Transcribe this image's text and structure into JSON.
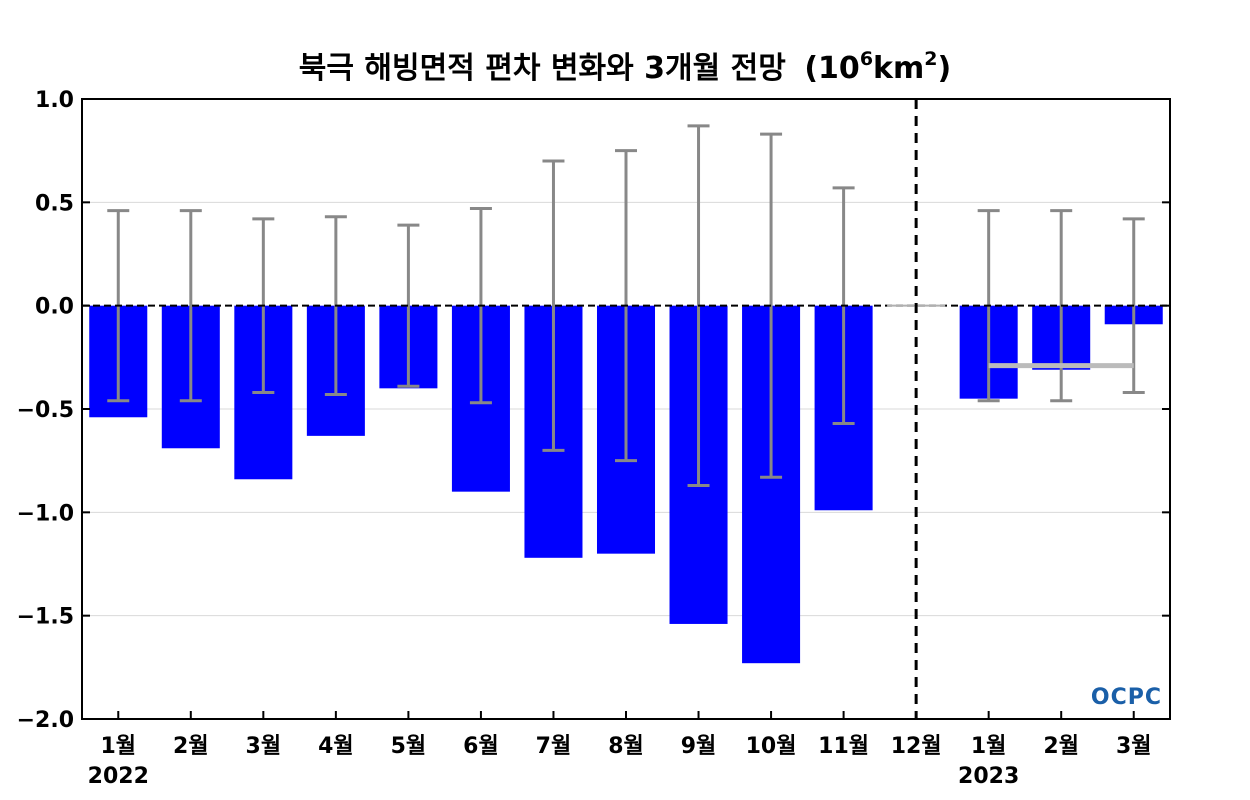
{
  "chart_data": {
    "type": "bar",
    "title": "북극 해빙면적 편차 변화와 3개월 전망",
    "title_unit": {
      "base": "(10",
      "exp1": "6",
      "mid": "km",
      "exp2": "2",
      "end": ")"
    },
    "categories": [
      "1월",
      "2월",
      "3월",
      "4월",
      "5월",
      "6월",
      "7월",
      "8월",
      "9월",
      "10월",
      "11월",
      "12월",
      "1월",
      "2월",
      "3월"
    ],
    "year_labels": [
      {
        "index": 0,
        "label": "2022"
      },
      {
        "index": 12,
        "label": "2023"
      }
    ],
    "values": [
      -0.54,
      -0.69,
      -0.84,
      -0.63,
      -0.4,
      -0.9,
      -1.22,
      -1.2,
      -1.54,
      -1.73,
      -0.99,
      0.0,
      -0.45,
      -0.31,
      -0.09
    ],
    "error_range": [
      0.46,
      0.46,
      0.42,
      0.43,
      0.39,
      0.47,
      0.7,
      0.75,
      0.87,
      0.83,
      0.57,
      null,
      0.46,
      0.46,
      0.42
    ],
    "forecast_mean": {
      "from_index": 12,
      "to_index": 14,
      "value": -0.29
    },
    "divider_after_index": 11,
    "ylim": [
      -2.0,
      1.0
    ],
    "yticks": [
      1.0,
      0.5,
      0.0,
      -0.5,
      -1.0,
      -1.5,
      -2.0
    ],
    "ytick_labels": [
      "1.0",
      "0.5",
      "0.0",
      "−0.5",
      "−1.0",
      "−1.5",
      "−2.0"
    ],
    "grid": true,
    "colors": {
      "bar": "#0000ff",
      "error": "#888888",
      "forecast_mean": "#bbbbbb",
      "zero_line": "#000000"
    },
    "logo": "OCPC"
  }
}
